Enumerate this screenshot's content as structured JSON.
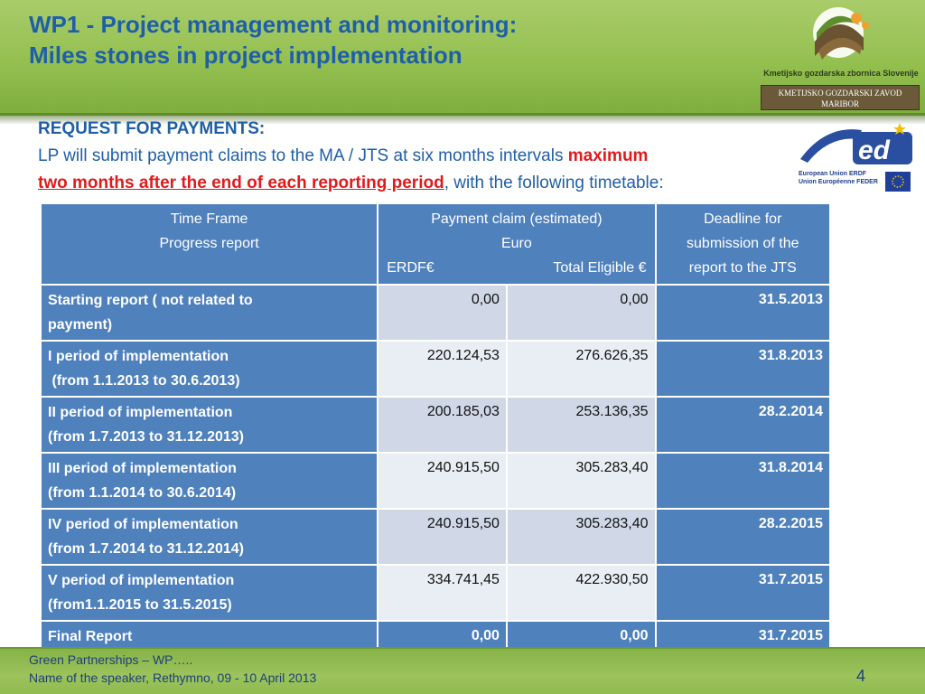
{
  "slide": {
    "title_line1": "WP1 - Project management and monitoring:",
    "title_line2": "Miles stones in project implementation",
    "page_number": "4"
  },
  "logo": {
    "name": "Kmetijsko gozdarska zbornica Slovenije",
    "box_line1": "KMETIJSKO GOZDARSKI ZAVOD",
    "box_line2": "MARIBOR"
  },
  "med_logo": {
    "text": "ed",
    "line1": "European Union ERDF",
    "line2": "Union Européenne FEDER"
  },
  "request": {
    "heading": "REQUEST FOR PAYMENTS:",
    "text_before": "LP will submit payment claims to the MA / JTS at six months intervals ",
    "red_part1": "maximum",
    "red_part2": "two months after the end of each reporting period",
    "text_after": ", with the following timetable:"
  },
  "table": {
    "headers": {
      "col1_line1": "Time Frame",
      "col1_line2": "Progress report",
      "col2_line1": "Payment claim (estimated)",
      "col2_line2": "Euro",
      "col2_erdf": "ERDF€",
      "col2_total": "Total Eligible €",
      "col3_line1": "Deadline for",
      "col3_line2": "submission of the",
      "col3_line3": "report to the JTS"
    },
    "rows": [
      {
        "label_line1": "Starting report ( not related to",
        "label_line2": "payment)",
        "erdf": "0,00",
        "total": "0,00",
        "deadline": "31.5.2013"
      },
      {
        "label_line1": "I period of implementation",
        "label_line2": " (from 1.1.2013 to 30.6.2013)",
        "erdf": "220.124,53",
        "total": "276.626,35",
        "deadline": "31.8.2013"
      },
      {
        "label_line1": "II period of implementation",
        "label_line2": "(from 1.7.2013 to 31.12.2013)",
        "erdf": "200.185,03",
        "total": "253.136,35",
        "deadline": "28.2.2014"
      },
      {
        "label_line1": "III period of implementation",
        "label_line2": "(from 1.1.2014 to 30.6.2014)",
        "erdf": "240.915,50",
        "total": "305.283,40",
        "deadline": "31.8.2014"
      },
      {
        "label_line1": "IV period of implementation",
        "label_line2": "(from 1.7.2014 to 31.12.2014)",
        "erdf": "240.915,50",
        "total": "305.283,40",
        "deadline": "28.2.2015"
      },
      {
        "label_line1": "V period of implementation",
        "label_line2": "(from1.1.2015 to 31.5.2015)",
        "erdf": "334.741,45",
        "total": "422.930,50",
        "deadline": "31.7.2015"
      }
    ],
    "final": {
      "label": "Final Report",
      "erdf": "0,00",
      "total": "0,00",
      "deadline": "31.7.2015"
    }
  },
  "footer": {
    "line1": "Green Partnerships – WP…..",
    "line2": "Name of the speaker, Rethymno, 09 - 10 April 2013"
  },
  "colors": {
    "header_green": "#94c050",
    "title_blue": "#1f5fa8",
    "table_blue": "#4f81bd",
    "alert_red": "#e01b1b"
  }
}
